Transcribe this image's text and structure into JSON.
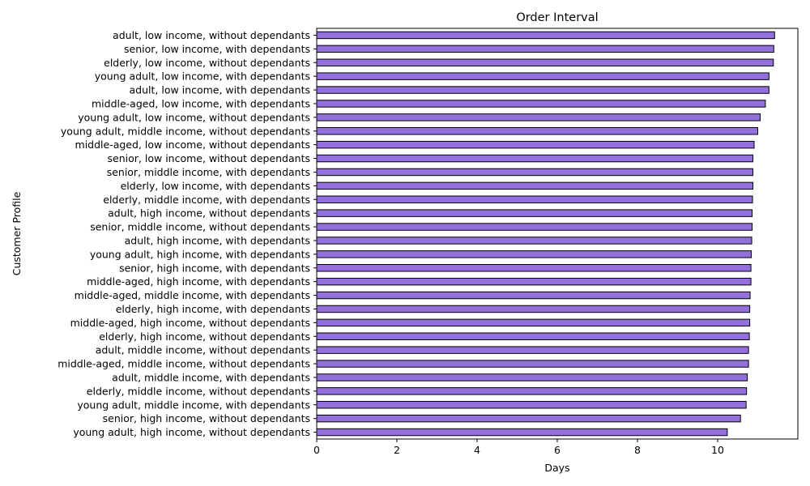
{
  "chart_data": {
    "type": "bar",
    "orientation": "horizontal",
    "title": "Order Interval",
    "xlabel": "Days",
    "ylabel": "Customer Profile",
    "xlim": [
      0,
      12
    ],
    "xticks": [
      0,
      2,
      4,
      6,
      8,
      10
    ],
    "grid": false,
    "legend": "none",
    "bar_color": "#9370DB",
    "edge_color": "#000000",
    "categories": [
      "adult, low income, without dependants",
      "senior, low income, with dependants",
      "elderly, low income, without dependants",
      "young adult, low income, with dependants",
      "adult, low income, with dependants",
      "middle-aged, low income, with dependants",
      "young adult, low income, without dependants",
      "young adult, middle income, without dependants",
      "middle-aged, low income, without dependants",
      "senior, low income, without dependants",
      "senior, middle income, with dependants",
      "elderly, low income, with dependants",
      "elderly, middle income, with dependants",
      "adult, high income, without dependants",
      "senior, middle income, without dependants",
      "adult, high income, with dependants",
      "young adult, high income, with dependants",
      "senior, high income, with dependants",
      "middle-aged, high income, with dependants",
      "middle-aged, middle income, with dependants",
      "elderly, high income, with dependants",
      "middle-aged, high income, without dependants",
      "elderly, high income, without dependants",
      "adult, middle income, without dependants",
      "middle-aged, middle income, without dependants",
      "adult, middle income, with dependants",
      "elderly, middle income, without dependants",
      "young adult, middle income, with dependants",
      "senior, high income, without dependants",
      "young adult, high income, without dependants"
    ],
    "values": [
      11.42,
      11.4,
      11.39,
      11.28,
      11.28,
      11.19,
      11.06,
      11.0,
      10.91,
      10.88,
      10.88,
      10.88,
      10.87,
      10.86,
      10.86,
      10.85,
      10.84,
      10.83,
      10.83,
      10.81,
      10.8,
      10.8,
      10.79,
      10.77,
      10.77,
      10.74,
      10.72,
      10.71,
      10.57,
      10.24
    ]
  }
}
